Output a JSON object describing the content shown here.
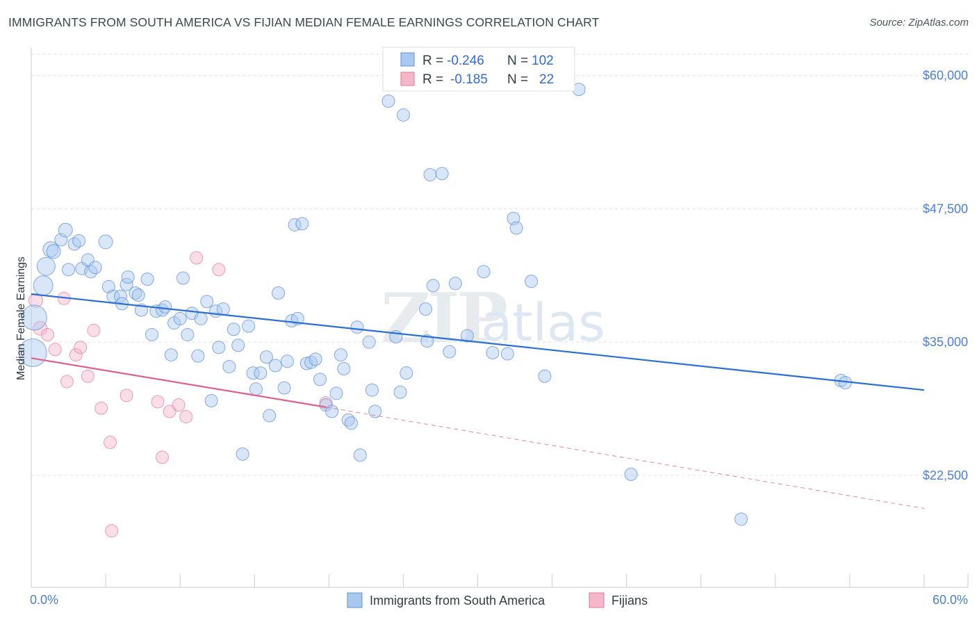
{
  "title": "IMMIGRANTS FROM SOUTH AMERICA VS FIJIAN MEDIAN FEMALE EARNINGS CORRELATION CHART",
  "source": "Source: ZipAtlas.com",
  "watermark": {
    "part1": "ZIP",
    "part2": "atlas"
  },
  "colors": {
    "blue_fill": "#a9c8ef",
    "blue_stroke": "#5b8fdc",
    "blue_line": "#2a6fd6",
    "pink_fill": "#f5b6c9",
    "pink_stroke": "#e27598",
    "pink_line": "#e0608a",
    "axis_text": "#4a7fd4",
    "grid": "#dcdfe3"
  },
  "legend": {
    "rows": [
      {
        "r_label": "R =",
        "r_value": "-0.246",
        "n_label": "N =",
        "n_value": "102"
      },
      {
        "r_label": "R =",
        "r_value": "-0.185",
        "n_label": "N =",
        "n_value": "22"
      }
    ]
  },
  "chart_data": {
    "type": "scatter",
    "title": "IMMIGRANTS FROM SOUTH AMERICA VS FIJIAN MEDIAN FEMALE EARNINGS CORRELATION CHART",
    "xlabel": "",
    "ylabel": "Median Female Earnings",
    "xlim": [
      0,
      60
    ],
    "ylim": [
      12000,
      62000
    ],
    "x_tick_labels": [
      "0.0%",
      "60.0%"
    ],
    "y_ticks": [
      {
        "value": 60000,
        "label": "$60,000"
      },
      {
        "value": 47500,
        "label": "$47,500"
      },
      {
        "value": 35000,
        "label": "$35,000"
      },
      {
        "value": 22500,
        "label": "$22,500"
      }
    ],
    "series": [
      {
        "name": "Immigrants from South America",
        "color": "#a9c8ef",
        "trend": {
          "x": [
            0,
            60
          ],
          "y": [
            39500,
            30500
          ],
          "dashed_extension": false
        },
        "points": [
          [
            0.1,
            34000,
            20
          ],
          [
            0.2,
            37300,
            18
          ],
          [
            0.8,
            40300,
            14
          ],
          [
            1.0,
            42100,
            13
          ],
          [
            1.3,
            43700,
            11
          ],
          [
            1.5,
            43500,
            10
          ],
          [
            2.0,
            44600,
            9
          ],
          [
            2.3,
            45500,
            10
          ],
          [
            2.5,
            41800,
            9
          ],
          [
            2.9,
            44200,
            9
          ],
          [
            3.2,
            44500,
            9
          ],
          [
            3.4,
            41900,
            9
          ],
          [
            3.8,
            42700,
            9
          ],
          [
            4.0,
            41600,
            9
          ],
          [
            4.3,
            42000,
            9
          ],
          [
            5.0,
            44400,
            10
          ],
          [
            5.2,
            40200,
            9
          ],
          [
            5.5,
            39300,
            9
          ],
          [
            6.0,
            39300,
            9
          ],
          [
            6.1,
            38600,
            9
          ],
          [
            6.4,
            40400,
            9
          ],
          [
            6.5,
            41100,
            9
          ],
          [
            7.0,
            39600,
            9
          ],
          [
            7.2,
            39400,
            9
          ],
          [
            7.4,
            38000,
            9
          ],
          [
            7.8,
            40900,
            9
          ],
          [
            8.1,
            35700,
            9
          ],
          [
            8.4,
            37900,
            9
          ],
          [
            8.8,
            38000,
            9
          ],
          [
            9.0,
            38300,
            9
          ],
          [
            9.4,
            33800,
            9
          ],
          [
            9.6,
            36800,
            9
          ],
          [
            10.0,
            37200,
            9
          ],
          [
            10.2,
            41000,
            9
          ],
          [
            10.5,
            35700,
            9
          ],
          [
            10.8,
            37700,
            9
          ],
          [
            11.2,
            33700,
            9
          ],
          [
            11.4,
            37200,
            9
          ],
          [
            11.8,
            38800,
            9
          ],
          [
            12.1,
            29500,
            9
          ],
          [
            12.4,
            37900,
            9
          ],
          [
            12.6,
            34500,
            9
          ],
          [
            12.9,
            38100,
            9
          ],
          [
            13.3,
            32700,
            9
          ],
          [
            13.6,
            36200,
            9
          ],
          [
            13.9,
            34700,
            9
          ],
          [
            14.2,
            24500,
            9
          ],
          [
            14.6,
            36500,
            9
          ],
          [
            14.9,
            32100,
            9
          ],
          [
            15.1,
            30600,
            9
          ],
          [
            15.4,
            32100,
            9
          ],
          [
            15.8,
            33600,
            9
          ],
          [
            16.0,
            28100,
            9
          ],
          [
            16.4,
            32800,
            9
          ],
          [
            16.6,
            39600,
            9
          ],
          [
            17.0,
            30700,
            9
          ],
          [
            17.2,
            33200,
            9
          ],
          [
            17.5,
            37000,
            9
          ],
          [
            17.7,
            46000,
            9
          ],
          [
            17.9,
            37200,
            9
          ],
          [
            18.2,
            46100,
            9
          ],
          [
            18.5,
            33000,
            9
          ],
          [
            18.8,
            33100,
            9
          ],
          [
            19.1,
            33400,
            9
          ],
          [
            19.4,
            31500,
            9
          ],
          [
            19.8,
            29100,
            9
          ],
          [
            20.2,
            28500,
            9
          ],
          [
            20.5,
            30200,
            9
          ],
          [
            20.8,
            33800,
            9
          ],
          [
            21.0,
            32500,
            9
          ],
          [
            21.3,
            27700,
            9
          ],
          [
            21.5,
            27400,
            9
          ],
          [
            21.9,
            36400,
            9
          ],
          [
            22.1,
            24400,
            9
          ],
          [
            22.7,
            35000,
            9
          ],
          [
            22.9,
            30500,
            9
          ],
          [
            23.1,
            28500,
            9
          ],
          [
            24.0,
            57600,
            9
          ],
          [
            24.5,
            35500,
            9
          ],
          [
            24.8,
            30300,
            9
          ],
          [
            25.0,
            56300,
            9
          ],
          [
            25.2,
            32100,
            9
          ],
          [
            26.6,
            35100,
            9
          ],
          [
            26.8,
            50700,
            9
          ],
          [
            27.0,
            40300,
            9
          ],
          [
            27.6,
            50800,
            9
          ],
          [
            28.1,
            34100,
            9
          ],
          [
            28.5,
            40500,
            9
          ],
          [
            29.3,
            35600,
            9
          ],
          [
            30.4,
            41600,
            9
          ],
          [
            31.0,
            34000,
            9
          ],
          [
            32.0,
            33900,
            9
          ],
          [
            32.4,
            46600,
            9
          ],
          [
            32.6,
            45700,
            9
          ],
          [
            33.6,
            40700,
            9
          ],
          [
            34.5,
            31800,
            9
          ],
          [
            36.8,
            58700,
            9
          ],
          [
            40.3,
            22600,
            9
          ],
          [
            47.7,
            18400,
            9
          ],
          [
            54.4,
            31400,
            9
          ],
          [
            54.7,
            31200,
            9
          ],
          [
            26.5,
            38100,
            9
          ]
        ]
      },
      {
        "name": "Fijians",
        "color": "#f5b6c9",
        "trend": {
          "x": [
            0,
            19.8
          ],
          "y": [
            33500,
            28900
          ],
          "dashed_x_end": 60,
          "dashed_y_end": 19400
        },
        "points": [
          [
            0.3,
            38900,
            10
          ],
          [
            0.6,
            36300,
            10
          ],
          [
            1.1,
            35700,
            9
          ],
          [
            1.6,
            34300,
            9
          ],
          [
            2.2,
            39100,
            9
          ],
          [
            2.4,
            31300,
            9
          ],
          [
            3.0,
            33800,
            9
          ],
          [
            3.3,
            34500,
            9
          ],
          [
            3.8,
            31800,
            9
          ],
          [
            4.2,
            36100,
            9
          ],
          [
            4.7,
            28800,
            9
          ],
          [
            5.3,
            25600,
            9
          ],
          [
            5.4,
            17300,
            9
          ],
          [
            6.4,
            30000,
            9
          ],
          [
            8.5,
            29400,
            9
          ],
          [
            8.8,
            24200,
            9
          ],
          [
            9.3,
            28500,
            9
          ],
          [
            9.9,
            29100,
            9
          ],
          [
            10.4,
            28000,
            9
          ],
          [
            11.1,
            42900,
            9
          ],
          [
            12.6,
            41800,
            9
          ],
          [
            19.8,
            29300,
            9
          ]
        ]
      }
    ]
  },
  "bottom_legend": {
    "items": [
      {
        "label": "Immigrants from South America"
      },
      {
        "label": "Fijians"
      }
    ]
  }
}
